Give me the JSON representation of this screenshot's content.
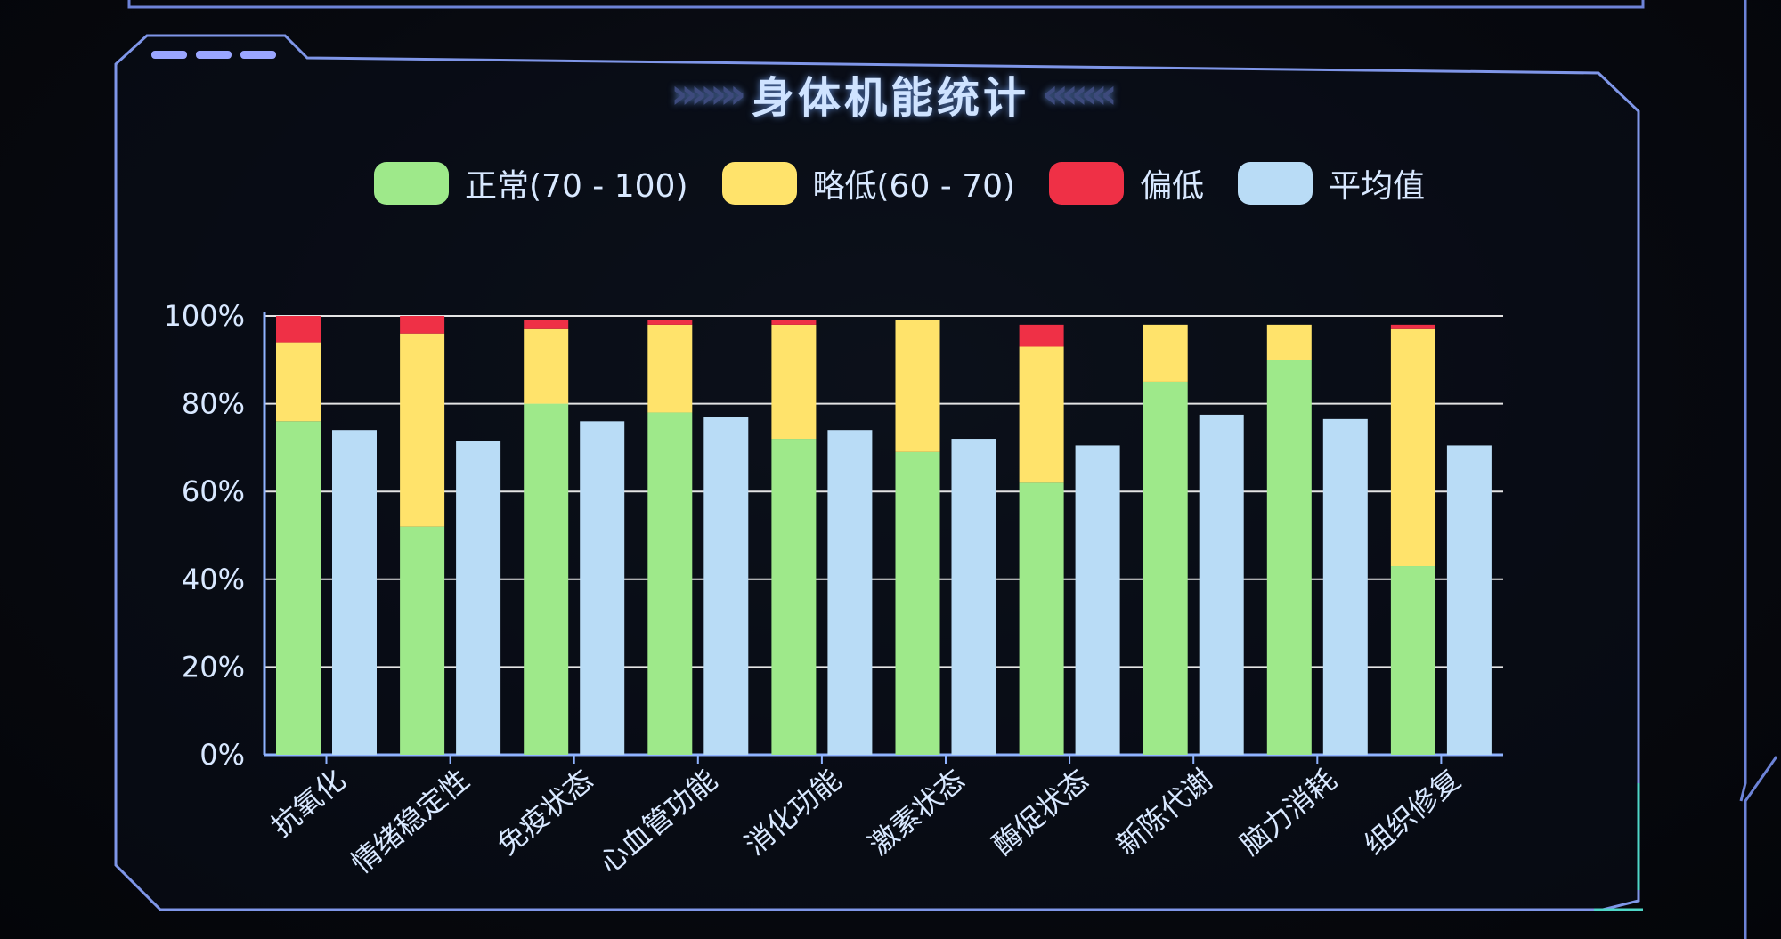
{
  "panel": {
    "title": "身体机能统计",
    "chevrons_left": "›››››››",
    "chevrons_right": "‹‹‹‹‹‹‹"
  },
  "legend": [
    {
      "label": "正常(70 - 100)",
      "color": "#9ee98a"
    },
    {
      "label": "略低(60 - 70)",
      "color": "#ffe36b"
    },
    {
      "label": "偏低",
      "color": "#ef3046"
    },
    {
      "label": "平均值",
      "color": "#b9dcf6"
    }
  ],
  "chart_data": {
    "type": "bar",
    "title": "身体机能统计",
    "xlabel": "",
    "ylabel": "",
    "ylim": [
      0,
      100
    ],
    "yticks": [
      "0%",
      "20%",
      "40%",
      "60%",
      "80%",
      "100%"
    ],
    "categories": [
      "抗氧化",
      "情绪稳定性",
      "免疫状态",
      "心血管功能",
      "消化功能",
      "激素状态",
      "酶促状态",
      "新陈代谢",
      "脑力消耗",
      "组织修复"
    ],
    "series": [
      {
        "name": "正常(70 - 100)",
        "stack": "s",
        "values": [
          76,
          52,
          80,
          78,
          72,
          69,
          62,
          85,
          90,
          43
        ]
      },
      {
        "name": "略低(60 - 70)",
        "stack": "s",
        "values": [
          18,
          44,
          17,
          20,
          26,
          30,
          31,
          13,
          8,
          54
        ]
      },
      {
        "name": "偏低",
        "stack": "s",
        "values": [
          6,
          4,
          2,
          1,
          1,
          0,
          5,
          0,
          0,
          1
        ]
      },
      {
        "name": "平均值",
        "values": [
          74,
          71.5,
          76,
          77,
          74,
          72,
          70.5,
          77.5,
          76.5,
          70.5
        ]
      }
    ],
    "grid": true,
    "legend_position": "top"
  }
}
